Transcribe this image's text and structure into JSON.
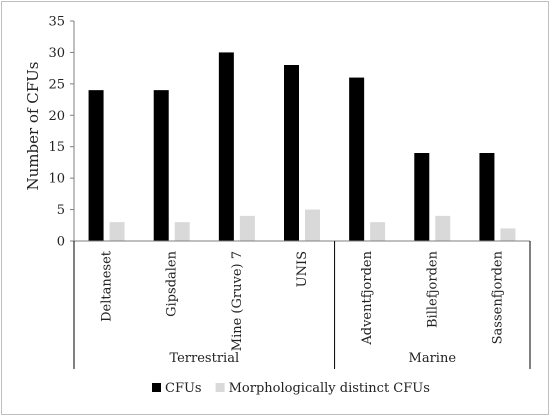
{
  "chart_data": {
    "type": "bar",
    "categories": [
      "Deltaneset",
      "Gipsdalen",
      "Mine (Gruve) 7",
      "UNIS",
      "Adventfjorden",
      "Billefjorden",
      "Sassenfjorden"
    ],
    "groups": [
      {
        "label": "Terrestrial",
        "from": 0,
        "to": 3
      },
      {
        "label": "Marine",
        "from": 4,
        "to": 6
      }
    ],
    "series": [
      {
        "name": "CFUs",
        "color": "#000000",
        "values": [
          24,
          24,
          30,
          28,
          26,
          14,
          14
        ]
      },
      {
        "name": "Morphologically distinct CFUs",
        "color": "#d9d9d9",
        "values": [
          3,
          3,
          4,
          5,
          3,
          4,
          2
        ]
      }
    ],
    "ylabel": "Number of CFUs",
    "xlabel": "",
    "title": "",
    "ylim": [
      0,
      35
    ],
    "yticks": [
      0,
      5,
      10,
      15,
      20,
      25,
      30,
      35
    ],
    "grid": false,
    "legend_position": "bottom"
  }
}
